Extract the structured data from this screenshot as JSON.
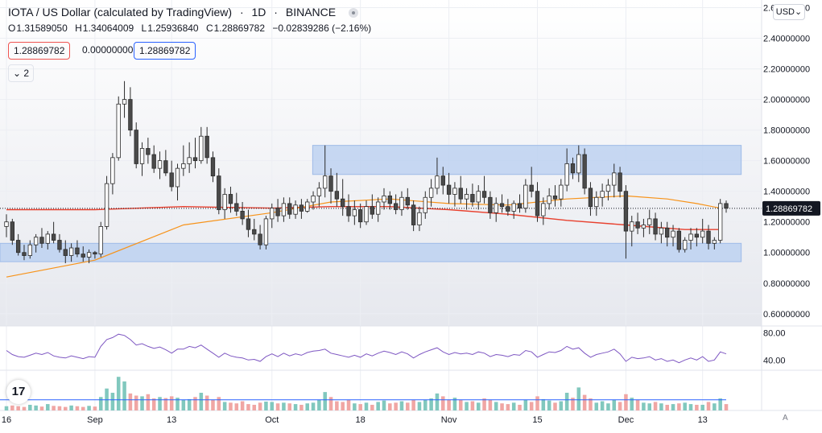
{
  "header": {
    "symbol": "IOTA / US Dollar (calculated by TradingView)",
    "interval": "1D",
    "exchange": "BINANCE"
  },
  "ohlc": {
    "o_label": "O",
    "o": "1.31589050",
    "h_label": "H",
    "h": "1.34064009",
    "l_label": "L",
    "l": "1.25936840",
    "c_label": "C",
    "c": "1.28869782",
    "change": "−0.02839286 (−2.16%)"
  },
  "price_boxes": {
    "sell": "1.28869782",
    "spread": "0.00000000",
    "buy": "1.28869782"
  },
  "indicators_toggle": "2",
  "currency": "USD",
  "logo": "17",
  "auto_label": "A",
  "colors": {
    "up": "#ffffff",
    "down": "#4a4a4a",
    "candle_border": "#2b2b2b",
    "ma_fast": "#f7931a",
    "ma_slow": "#e8412f",
    "zone": "#b7cdf0",
    "rsi": "#7e57c2",
    "vol_up": "#81c8be",
    "vol_down": "#f0a6a4",
    "vol_ma": "#2962ff",
    "last_price_bg": "#131722"
  },
  "chart_data": [
    {
      "type": "candlestick",
      "title": "IOTA / US Dollar (calculated by TradingView)",
      "y_ticks": [
        "2.60000000",
        "2.40000000",
        "2.20000000",
        "2.00000000",
        "1.80000000",
        "1.60000000",
        "1.40000000",
        "1.20000000",
        "1.00000000",
        "0.80000000",
        "0.60000000"
      ],
      "ylim": [
        0.52,
        2.65
      ],
      "x_labels": [
        "16",
        "Sep",
        "13",
        "Oct",
        "18",
        "Nov",
        "15",
        "Dec",
        "13"
      ],
      "x_label_days": [
        0,
        15,
        28,
        45,
        60,
        75,
        90,
        105,
        118
      ],
      "last_price": 1.28869782,
      "last_price_label": "1.28869782",
      "zones": [
        {
          "x": [
            53,
            124
          ],
          "y": [
            1.51,
            1.7
          ]
        },
        {
          "x": [
            0,
            124
          ],
          "y": [
            0.94,
            1.06
          ]
        }
      ],
      "candles": [
        [
          1.17,
          1.25,
          1.1,
          1.2
        ],
        [
          1.2,
          1.22,
          1.05,
          1.08
        ],
        [
          1.08,
          1.12,
          0.98,
          1.0
        ],
        [
          1.0,
          1.05,
          0.95,
          0.98
        ],
        [
          0.98,
          1.08,
          0.96,
          1.05
        ],
        [
          1.05,
          1.12,
          1.0,
          1.1
        ],
        [
          1.1,
          1.16,
          1.03,
          1.06
        ],
        [
          1.06,
          1.14,
          1.02,
          1.12
        ],
        [
          1.12,
          1.2,
          1.06,
          1.08
        ],
        [
          1.08,
          1.12,
          1.0,
          1.02
        ],
        [
          1.02,
          1.08,
          0.93,
          0.98
        ],
        [
          0.98,
          1.06,
          0.94,
          1.03
        ],
        [
          1.03,
          1.08,
          0.97,
          0.99
        ],
        [
          0.99,
          1.04,
          0.94,
          0.97
        ],
        [
          0.97,
          1.02,
          0.93,
          1.0
        ],
        [
          1.0,
          1.01,
          0.96,
          0.99
        ],
        [
          0.99,
          1.2,
          0.97,
          1.17
        ],
        [
          1.17,
          1.5,
          1.15,
          1.45
        ],
        [
          1.45,
          1.65,
          1.38,
          1.62
        ],
        [
          1.62,
          2.02,
          1.6,
          1.97
        ],
        [
          1.97,
          2.12,
          1.88,
          2.0
        ],
        [
          2.0,
          2.08,
          1.76,
          1.8
        ],
        [
          1.8,
          1.85,
          1.55,
          1.58
        ],
        [
          1.58,
          1.72,
          1.5,
          1.68
        ],
        [
          1.68,
          1.75,
          1.58,
          1.64
        ],
        [
          1.64,
          1.7,
          1.52,
          1.55
        ],
        [
          1.55,
          1.66,
          1.48,
          1.6
        ],
        [
          1.6,
          1.67,
          1.5,
          1.52
        ],
        [
          1.52,
          1.6,
          1.4,
          1.43
        ],
        [
          1.43,
          1.58,
          1.34,
          1.55
        ],
        [
          1.55,
          1.7,
          1.5,
          1.58
        ],
        [
          1.58,
          1.72,
          1.52,
          1.62
        ],
        [
          1.62,
          1.75,
          1.55,
          1.6
        ],
        [
          1.6,
          1.82,
          1.58,
          1.76
        ],
        [
          1.76,
          1.82,
          1.58,
          1.62
        ],
        [
          1.62,
          1.66,
          1.46,
          1.5
        ],
        [
          1.5,
          1.55,
          1.25,
          1.28
        ],
        [
          1.28,
          1.42,
          1.22,
          1.38
        ],
        [
          1.38,
          1.43,
          1.26,
          1.32
        ],
        [
          1.32,
          1.39,
          1.24,
          1.27
        ],
        [
          1.27,
          1.33,
          1.18,
          1.22
        ],
        [
          1.22,
          1.28,
          1.1,
          1.15
        ],
        [
          1.15,
          1.22,
          1.08,
          1.12
        ],
        [
          1.12,
          1.18,
          1.02,
          1.05
        ],
        [
          1.05,
          1.24,
          1.02,
          1.22
        ],
        [
          1.22,
          1.32,
          1.16,
          1.29
        ],
        [
          1.29,
          1.35,
          1.2,
          1.24
        ],
        [
          1.24,
          1.36,
          1.2,
          1.32
        ],
        [
          1.32,
          1.36,
          1.22,
          1.25
        ],
        [
          1.25,
          1.34,
          1.22,
          1.31
        ],
        [
          1.31,
          1.35,
          1.22,
          1.27
        ],
        [
          1.27,
          1.35,
          1.26,
          1.33
        ],
        [
          1.33,
          1.4,
          1.28,
          1.37
        ],
        [
          1.37,
          1.46,
          1.3,
          1.42
        ],
        [
          1.42,
          1.7,
          1.36,
          1.5
        ],
        [
          1.5,
          1.55,
          1.32,
          1.4
        ],
        [
          1.4,
          1.52,
          1.3,
          1.35
        ],
        [
          1.35,
          1.48,
          1.24,
          1.3
        ],
        [
          1.3,
          1.38,
          1.2,
          1.24
        ],
        [
          1.24,
          1.34,
          1.18,
          1.28
        ],
        [
          1.28,
          1.32,
          1.16,
          1.2
        ],
        [
          1.2,
          1.34,
          1.18,
          1.3
        ],
        [
          1.3,
          1.38,
          1.22,
          1.25
        ],
        [
          1.25,
          1.36,
          1.2,
          1.33
        ],
        [
          1.33,
          1.42,
          1.28,
          1.37
        ],
        [
          1.37,
          1.4,
          1.28,
          1.32
        ],
        [
          1.32,
          1.38,
          1.25,
          1.28
        ],
        [
          1.28,
          1.4,
          1.24,
          1.36
        ],
        [
          1.36,
          1.42,
          1.28,
          1.31
        ],
        [
          1.31,
          1.34,
          1.14,
          1.18
        ],
        [
          1.18,
          1.3,
          1.14,
          1.26
        ],
        [
          1.26,
          1.4,
          1.22,
          1.36
        ],
        [
          1.36,
          1.48,
          1.3,
          1.42
        ],
        [
          1.42,
          1.62,
          1.38,
          1.5
        ],
        [
          1.5,
          1.56,
          1.38,
          1.44
        ],
        [
          1.44,
          1.52,
          1.32,
          1.38
        ],
        [
          1.38,
          1.46,
          1.3,
          1.42
        ],
        [
          1.42,
          1.5,
          1.32,
          1.35
        ],
        [
          1.35,
          1.42,
          1.28,
          1.38
        ],
        [
          1.38,
          1.45,
          1.3,
          1.33
        ],
        [
          1.33,
          1.44,
          1.28,
          1.4
        ],
        [
          1.4,
          1.5,
          1.32,
          1.36
        ],
        [
          1.36,
          1.4,
          1.22,
          1.26
        ],
        [
          1.26,
          1.36,
          1.2,
          1.32
        ],
        [
          1.32,
          1.38,
          1.26,
          1.3
        ],
        [
          1.3,
          1.35,
          1.24,
          1.27
        ],
        [
          1.27,
          1.34,
          1.22,
          1.32
        ],
        [
          1.32,
          1.38,
          1.26,
          1.29
        ],
        [
          1.29,
          1.48,
          1.26,
          1.44
        ],
        [
          1.44,
          1.56,
          1.36,
          1.4
        ],
        [
          1.4,
          1.46,
          1.2,
          1.24
        ],
        [
          1.24,
          1.36,
          1.18,
          1.32
        ],
        [
          1.32,
          1.42,
          1.28,
          1.37
        ],
        [
          1.37,
          1.44,
          1.3,
          1.35
        ],
        [
          1.35,
          1.48,
          1.3,
          1.44
        ],
        [
          1.44,
          1.68,
          1.4,
          1.58
        ],
        [
          1.58,
          1.62,
          1.48,
          1.52
        ],
        [
          1.52,
          1.7,
          1.46,
          1.64
        ],
        [
          1.64,
          1.68,
          1.38,
          1.42
        ],
        [
          1.42,
          1.46,
          1.24,
          1.3
        ],
        [
          1.3,
          1.4,
          1.24,
          1.36
        ],
        [
          1.36,
          1.45,
          1.3,
          1.4
        ],
        [
          1.4,
          1.48,
          1.34,
          1.44
        ],
        [
          1.44,
          1.58,
          1.36,
          1.52
        ],
        [
          1.52,
          1.56,
          1.36,
          1.4
        ],
        [
          1.4,
          1.44,
          0.96,
          1.14
        ],
        [
          1.14,
          1.24,
          1.04,
          1.2
        ],
        [
          1.2,
          1.26,
          1.12,
          1.16
        ],
        [
          1.16,
          1.22,
          1.1,
          1.18
        ],
        [
          1.18,
          1.28,
          1.12,
          1.22
        ],
        [
          1.22,
          1.26,
          1.08,
          1.12
        ],
        [
          1.12,
          1.2,
          1.06,
          1.16
        ],
        [
          1.16,
          1.2,
          1.04,
          1.1
        ],
        [
          1.1,
          1.18,
          1.04,
          1.14
        ],
        [
          1.14,
          1.16,
          1.0,
          1.02
        ],
        [
          1.02,
          1.1,
          1.0,
          1.08
        ],
        [
          1.08,
          1.16,
          1.02,
          1.12
        ],
        [
          1.12,
          1.16,
          1.04,
          1.1
        ],
        [
          1.1,
          1.22,
          1.06,
          1.14
        ],
        [
          1.14,
          1.18,
          1.02,
          1.06
        ],
        [
          1.06,
          1.1,
          1.02,
          1.08
        ],
        [
          1.08,
          1.35,
          1.06,
          1.32
        ],
        [
          1.32,
          1.34,
          1.26,
          1.29
        ]
      ],
      "ma_fast": [
        [
          0,
          0.84
        ],
        [
          15,
          0.95
        ],
        [
          30,
          1.18
        ],
        [
          45,
          1.26
        ],
        [
          55,
          1.33
        ],
        [
          65,
          1.35
        ],
        [
          75,
          1.32
        ],
        [
          85,
          1.31
        ],
        [
          95,
          1.35
        ],
        [
          105,
          1.37
        ],
        [
          112,
          1.35
        ],
        [
          117,
          1.32
        ],
        [
          121,
          1.29
        ]
      ],
      "ma_slow": [
        [
          0,
          1.28
        ],
        [
          15,
          1.28
        ],
        [
          30,
          1.3
        ],
        [
          45,
          1.29
        ],
        [
          55,
          1.3
        ],
        [
          65,
          1.3
        ],
        [
          75,
          1.28
        ],
        [
          85,
          1.25
        ],
        [
          95,
          1.21
        ],
        [
          105,
          1.18
        ],
        [
          115,
          1.15
        ],
        [
          121,
          1.15
        ]
      ],
      "volume_ma_level": 0.3
    },
    {
      "type": "line",
      "title": "",
      "y_ticks": [
        "80.00",
        "40.00"
      ],
      "ylim": [
        25,
        90
      ],
      "values": [
        54,
        48,
        45,
        44,
        47,
        50,
        48,
        51,
        46,
        44,
        43,
        46,
        44,
        42,
        45,
        44,
        60,
        70,
        73,
        78,
        76,
        70,
        62,
        64,
        60,
        57,
        59,
        55,
        50,
        56,
        56,
        60,
        58,
        62,
        56,
        50,
        44,
        50,
        46,
        44,
        43,
        40,
        41,
        38,
        45,
        49,
        45,
        50,
        46,
        49,
        47,
        51,
        53,
        54,
        56,
        50,
        48,
        46,
        44,
        47,
        44,
        49,
        46,
        50,
        53,
        51,
        48,
        52,
        49,
        43,
        48,
        52,
        55,
        58,
        52,
        48,
        51,
        49,
        50,
        48,
        52,
        50,
        45,
        48,
        47,
        45,
        48,
        47,
        54,
        52,
        44,
        48,
        52,
        51,
        54,
        60,
        56,
        58,
        50,
        44,
        48,
        50,
        52,
        56,
        49,
        38,
        44,
        42,
        43,
        45,
        40,
        42,
        38,
        40,
        36,
        40,
        43,
        40,
        45,
        38,
        40,
        52,
        49
      ]
    },
    {
      "type": "bar",
      "title": "",
      "values": [
        0.12,
        0.14,
        0.12,
        0.1,
        0.16,
        0.14,
        0.11,
        0.18,
        0.13,
        0.12,
        0.1,
        0.14,
        0.12,
        0.1,
        0.13,
        0.11,
        0.38,
        0.62,
        0.5,
        0.95,
        0.82,
        0.48,
        0.42,
        0.4,
        0.46,
        0.34,
        0.38,
        0.35,
        0.4,
        0.36,
        0.3,
        0.32,
        0.38,
        0.5,
        0.42,
        0.3,
        0.38,
        0.24,
        0.22,
        0.2,
        0.26,
        0.18,
        0.16,
        0.22,
        0.25,
        0.24,
        0.2,
        0.22,
        0.2,
        0.18,
        0.16,
        0.2,
        0.22,
        0.3,
        0.52,
        0.38,
        0.26,
        0.24,
        0.3,
        0.2,
        0.18,
        0.22,
        0.16,
        0.24,
        0.28,
        0.2,
        0.22,
        0.26,
        0.22,
        0.3,
        0.24,
        0.3,
        0.34,
        0.48,
        0.4,
        0.3,
        0.36,
        0.3,
        0.24,
        0.26,
        0.22,
        0.34,
        0.3,
        0.24,
        0.2,
        0.18,
        0.22,
        0.16,
        0.3,
        0.24,
        0.4,
        0.32,
        0.28,
        0.22,
        0.26,
        0.5,
        0.36,
        0.65,
        0.44,
        0.34,
        0.22,
        0.26,
        0.2,
        0.3,
        0.24,
        0.46,
        0.36,
        0.3,
        0.22,
        0.2,
        0.24,
        0.2,
        0.16,
        0.18,
        0.2,
        0.22,
        0.18,
        0.16,
        0.16,
        0.24,
        0.2,
        0.34,
        0.18
      ]
    }
  ]
}
